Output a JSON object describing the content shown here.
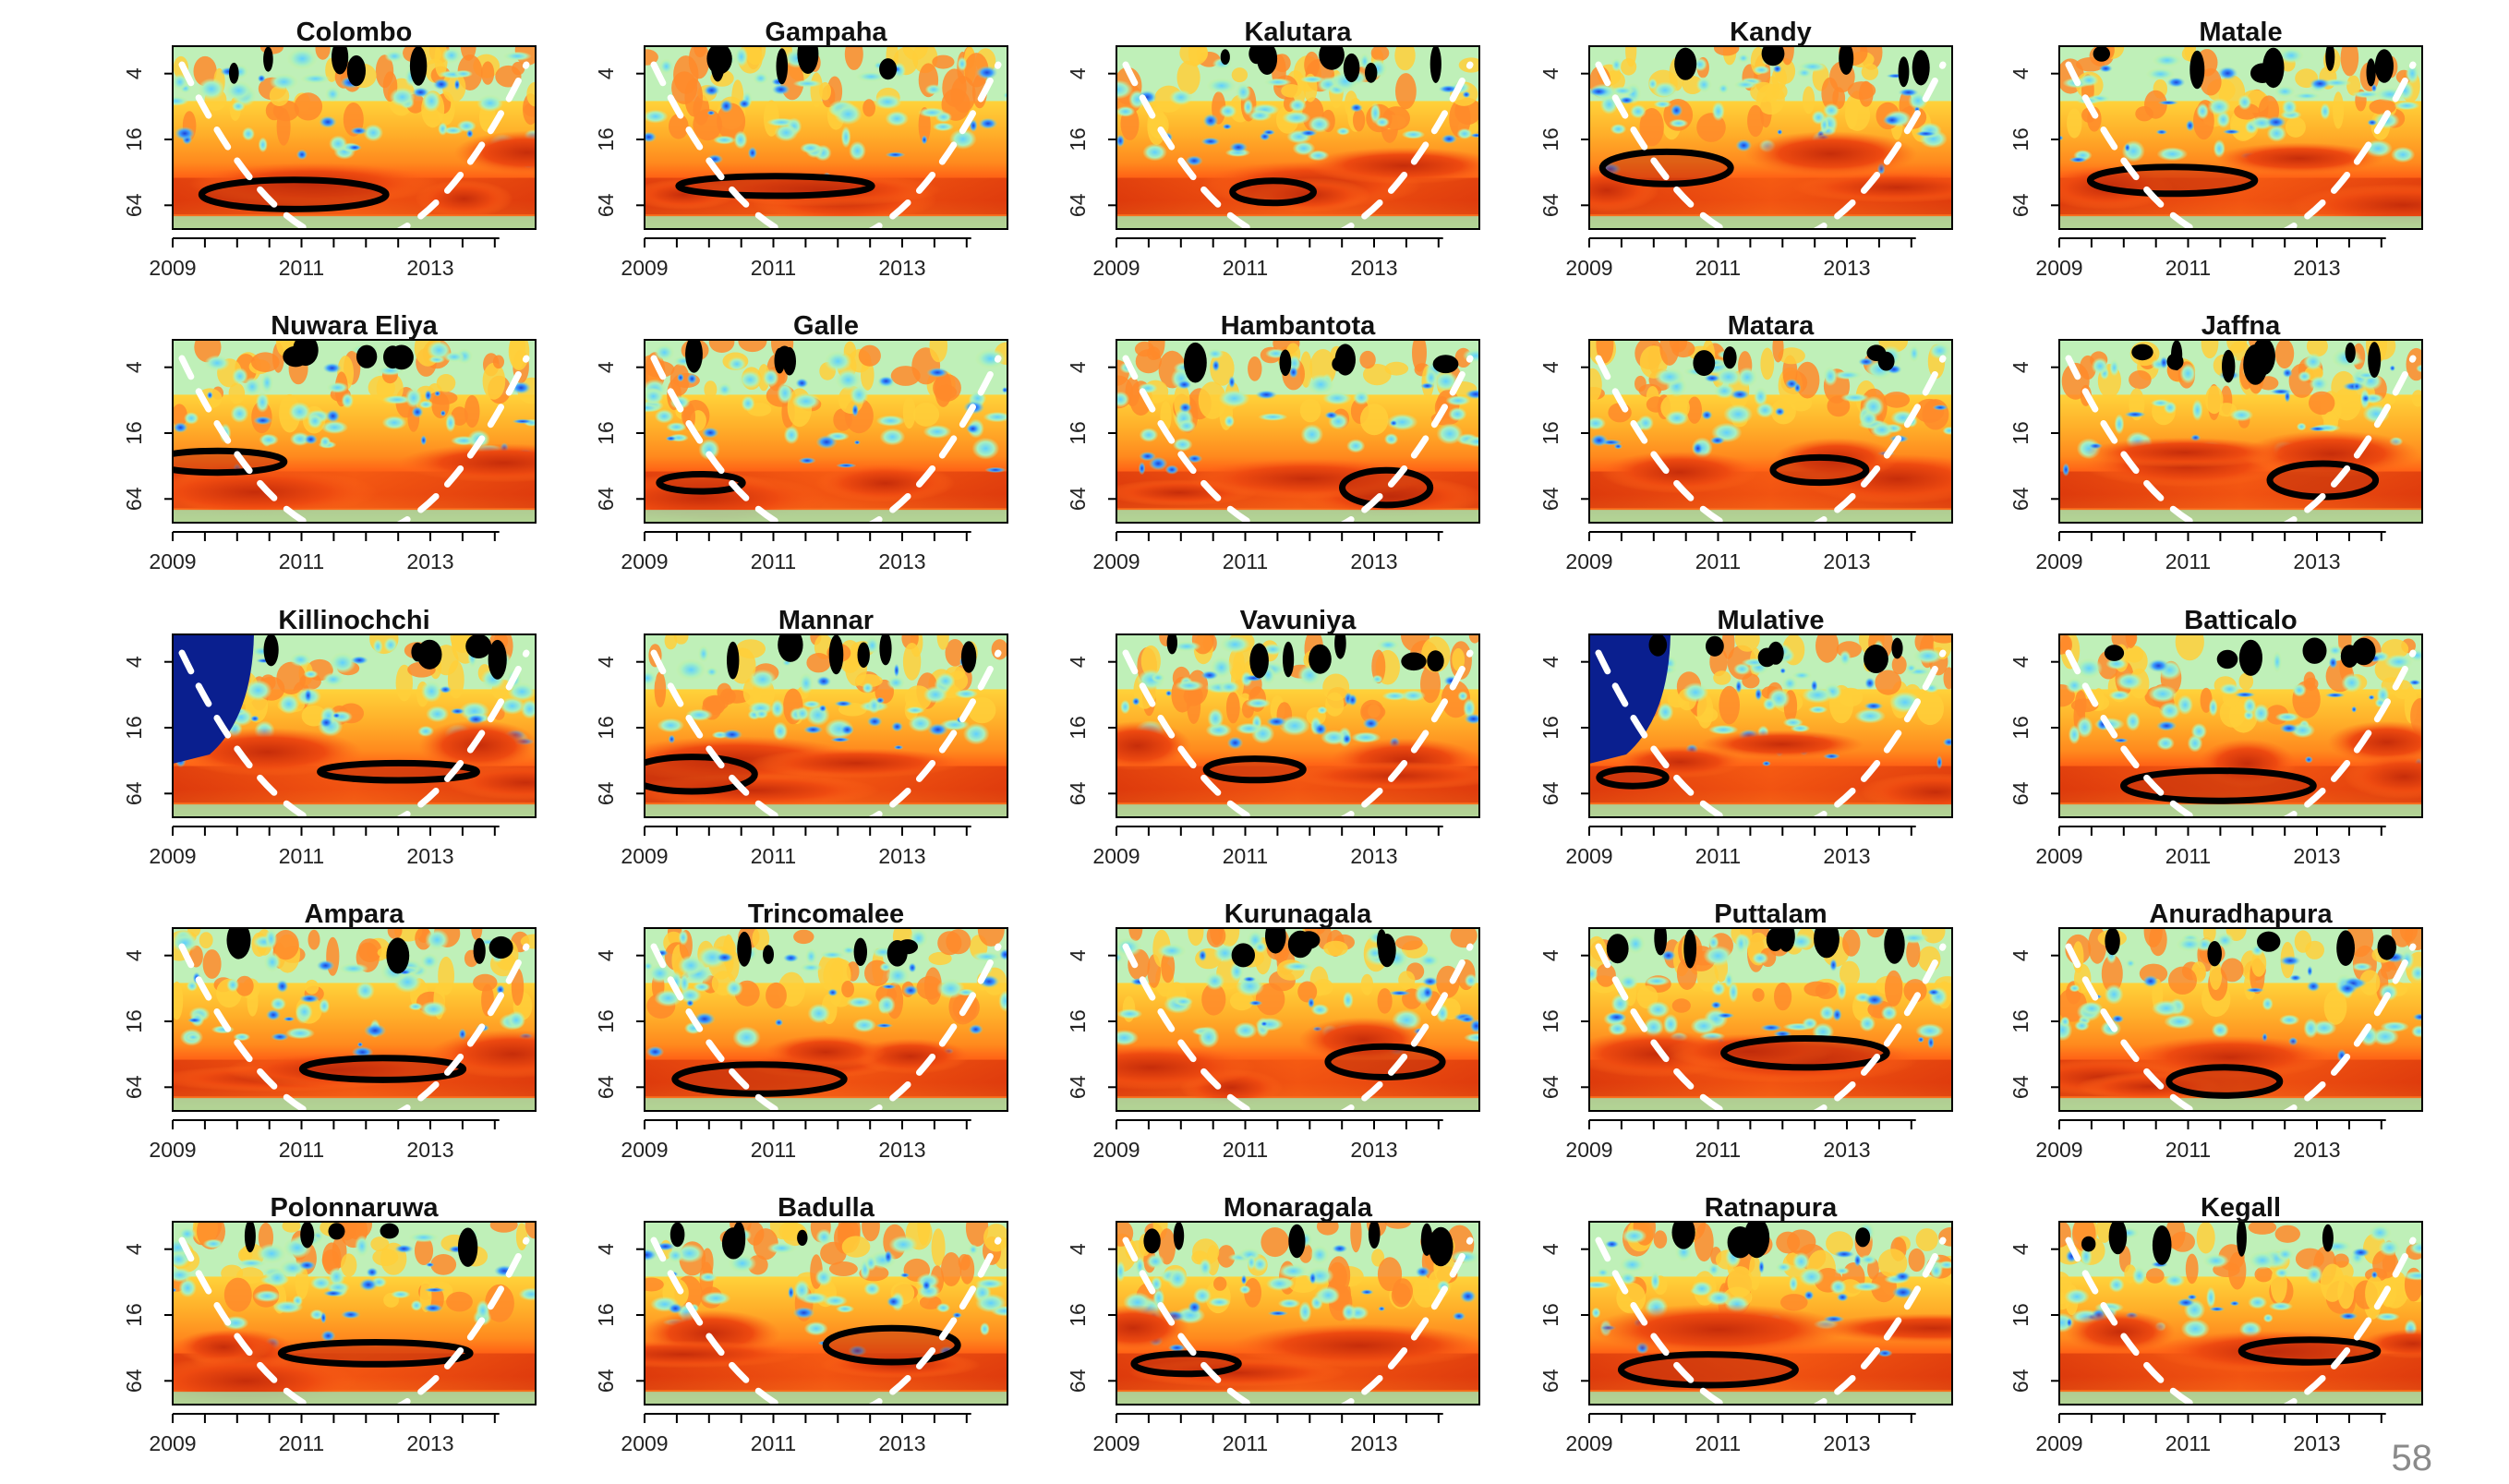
{
  "page_number": "58",
  "colors": {
    "low_power": "#0a1f8f",
    "mid_low": "#3ea0ff",
    "mid": "#7fe0d0",
    "mid_high": "#ffe066",
    "high": "#ff6a1a",
    "very_high": "#c62d0a",
    "significance_contour": "#000000",
    "cone_of_influence": "#ffffff"
  },
  "chart_data": [
    {
      "type": "heatmap",
      "title": "Colombo",
      "x_ticks": [
        "2009",
        "2011",
        "2013"
      ],
      "y_ticks": [
        "4",
        "16",
        "64"
      ]
    },
    {
      "type": "heatmap",
      "title": "Gampaha",
      "x_ticks": [
        "2009",
        "2011",
        "2013"
      ],
      "y_ticks": [
        "4",
        "16",
        "64"
      ]
    },
    {
      "type": "heatmap",
      "title": "Kalutara",
      "x_ticks": [
        "2009",
        "2011",
        "2013"
      ],
      "y_ticks": [
        "4",
        "16",
        "64"
      ]
    },
    {
      "type": "heatmap",
      "title": "Kandy",
      "x_ticks": [
        "2009",
        "2011",
        "2013"
      ],
      "y_ticks": [
        "4",
        "16",
        "64"
      ]
    },
    {
      "type": "heatmap",
      "title": "Matale",
      "x_ticks": [
        "2009",
        "2011",
        "2013"
      ],
      "y_ticks": [
        "4",
        "16",
        "64"
      ]
    },
    {
      "type": "heatmap",
      "title": "Nuwara Eliya",
      "x_ticks": [
        "2009",
        "2011",
        "2013"
      ],
      "y_ticks": [
        "4",
        "16",
        "64"
      ]
    },
    {
      "type": "heatmap",
      "title": "Galle",
      "x_ticks": [
        "2009",
        "2011",
        "2013"
      ],
      "y_ticks": [
        "4",
        "16",
        "64"
      ]
    },
    {
      "type": "heatmap",
      "title": "Hambantota",
      "x_ticks": [
        "2009",
        "2011",
        "2013"
      ],
      "y_ticks": [
        "4",
        "16",
        "64"
      ]
    },
    {
      "type": "heatmap",
      "title": "Matara",
      "x_ticks": [
        "2009",
        "2011",
        "2013"
      ],
      "y_ticks": [
        "4",
        "16",
        "64"
      ]
    },
    {
      "type": "heatmap",
      "title": "Jaffna",
      "x_ticks": [
        "2009",
        "2011",
        "2013"
      ],
      "y_ticks": [
        "4",
        "16",
        "64"
      ]
    },
    {
      "type": "heatmap",
      "title": "Killinochchi",
      "x_ticks": [
        "2009",
        "2011",
        "2013"
      ],
      "y_ticks": [
        "4",
        "16",
        "64"
      ]
    },
    {
      "type": "heatmap",
      "title": "Mannar",
      "x_ticks": [
        "2009",
        "2011",
        "2013"
      ],
      "y_ticks": [
        "4",
        "16",
        "64"
      ]
    },
    {
      "type": "heatmap",
      "title": "Vavuniya",
      "x_ticks": [
        "2009",
        "2011",
        "2013"
      ],
      "y_ticks": [
        "4",
        "16",
        "64"
      ]
    },
    {
      "type": "heatmap",
      "title": "Mulative",
      "x_ticks": [
        "2009",
        "2011",
        "2013"
      ],
      "y_ticks": [
        "4",
        "16",
        "64"
      ]
    },
    {
      "type": "heatmap",
      "title": "Batticalo",
      "x_ticks": [
        "2009",
        "2011",
        "2013"
      ],
      "y_ticks": [
        "4",
        "16",
        "64"
      ]
    },
    {
      "type": "heatmap",
      "title": "Ampara",
      "x_ticks": [
        "2009",
        "2011",
        "2013"
      ],
      "y_ticks": [
        "4",
        "16",
        "64"
      ]
    },
    {
      "type": "heatmap",
      "title": "Trincomalee",
      "x_ticks": [
        "2009",
        "2011",
        "2013"
      ],
      "y_ticks": [
        "4",
        "16",
        "64"
      ]
    },
    {
      "type": "heatmap",
      "title": "Kurunagala",
      "x_ticks": [
        "2009",
        "2011",
        "2013"
      ],
      "y_ticks": [
        "4",
        "16",
        "64"
      ]
    },
    {
      "type": "heatmap",
      "title": "Puttalam",
      "x_ticks": [
        "2009",
        "2011",
        "2013"
      ],
      "y_ticks": [
        "4",
        "16",
        "64"
      ]
    },
    {
      "type": "heatmap",
      "title": "Anuradhapura",
      "x_ticks": [
        "2009",
        "2011",
        "2013"
      ],
      "y_ticks": [
        "4",
        "16",
        "64"
      ]
    },
    {
      "type": "heatmap",
      "title": "Polonnaruwa",
      "x_ticks": [
        "2009",
        "2011",
        "2013"
      ],
      "y_ticks": [
        "4",
        "16",
        "64"
      ]
    },
    {
      "type": "heatmap",
      "title": "Badulla",
      "x_ticks": [
        "2009",
        "2011",
        "2013"
      ],
      "y_ticks": [
        "4",
        "16",
        "64"
      ]
    },
    {
      "type": "heatmap",
      "title": "Monaragala",
      "x_ticks": [
        "2009",
        "2011",
        "2013"
      ],
      "y_ticks": [
        "4",
        "16",
        "64"
      ]
    },
    {
      "type": "heatmap",
      "title": "Ratnapura",
      "x_ticks": [
        "2009",
        "2011",
        "2013"
      ],
      "y_ticks": [
        "4",
        "16",
        "64"
      ]
    },
    {
      "type": "heatmap",
      "title": "Kegall",
      "x_ticks": [
        "2009",
        "2011",
        "2013"
      ],
      "y_ticks": [
        "4",
        "16",
        "64"
      ]
    }
  ]
}
